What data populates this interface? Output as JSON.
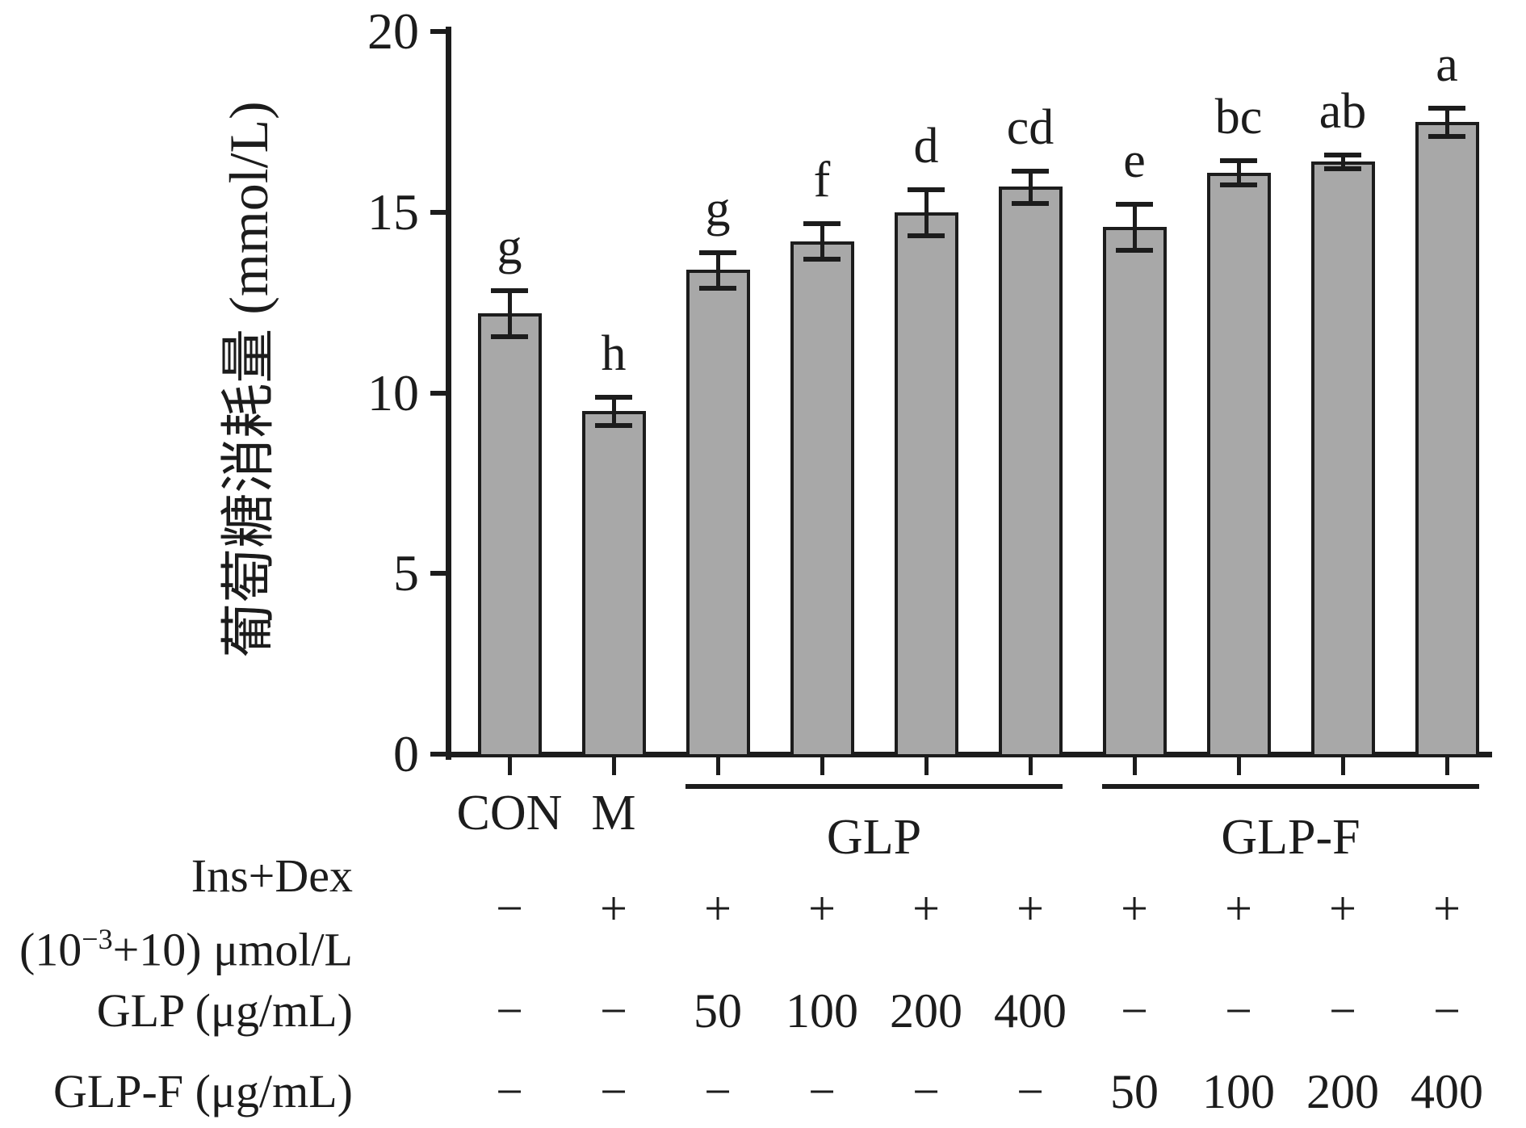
{
  "figure": {
    "background": "#ffffff",
    "bar_fill": "#a8a8a8",
    "bar_border": "#1c1c1c",
    "axis_color": "#1c1c1c",
    "text_color": "#1c1c1c"
  },
  "chart_data": {
    "type": "bar",
    "title": "",
    "xlabel": "",
    "ylabel": "葡萄糖消耗量 (mmol/L)",
    "ylim": [
      0,
      20
    ],
    "yticks": [
      0,
      5,
      10,
      15,
      20
    ],
    "grid": false,
    "legend": false,
    "categories": [
      "CON",
      "M",
      "GLP 50",
      "GLP 100",
      "GLP 200",
      "GLP 400",
      "GLP-F 50",
      "GLP-F 100",
      "GLP-F 200",
      "GLP-F 400"
    ],
    "values": [
      12.2,
      9.5,
      13.4,
      14.2,
      15.0,
      15.7,
      14.6,
      16.1,
      16.4,
      17.5
    ],
    "errors": [
      0.65,
      0.4,
      0.5,
      0.5,
      0.65,
      0.45,
      0.65,
      0.35,
      0.2,
      0.4
    ],
    "sig_letters": [
      "g",
      "h",
      "g",
      "f",
      "d",
      "cd",
      "e",
      "bc",
      "ab",
      "a"
    ],
    "x_tick_labels": [
      "CON",
      "M",
      "",
      "",
      "",
      "",
      "",
      "",
      "",
      ""
    ],
    "group_brackets": [
      {
        "label": "GLP",
        "start_index": 2,
        "end_index": 5
      },
      {
        "label": "GLP-F",
        "start_index": 6,
        "end_index": 9
      }
    ]
  },
  "dose_table": {
    "rows": [
      {
        "id": "ins-dex",
        "label_line1": "Ins+Dex",
        "label_line2_prefix": "(10",
        "label_line2_sup": "−3",
        "label_line2_suffix": "+10) μmol/L",
        "values": [
          "−",
          "+",
          "+",
          "+",
          "+",
          "+",
          "+",
          "+",
          "+",
          "+"
        ]
      },
      {
        "id": "glp",
        "label": "GLP (μg/mL)",
        "values": [
          "−",
          "−",
          "50",
          "100",
          "200",
          "400",
          "−",
          "−",
          "−",
          "−"
        ]
      },
      {
        "id": "glp-f",
        "label": "GLP-F (μg/mL)",
        "values": [
          "−",
          "−",
          "−",
          "−",
          "−",
          "−",
          "50",
          "100",
          "200",
          "400"
        ]
      }
    ]
  }
}
